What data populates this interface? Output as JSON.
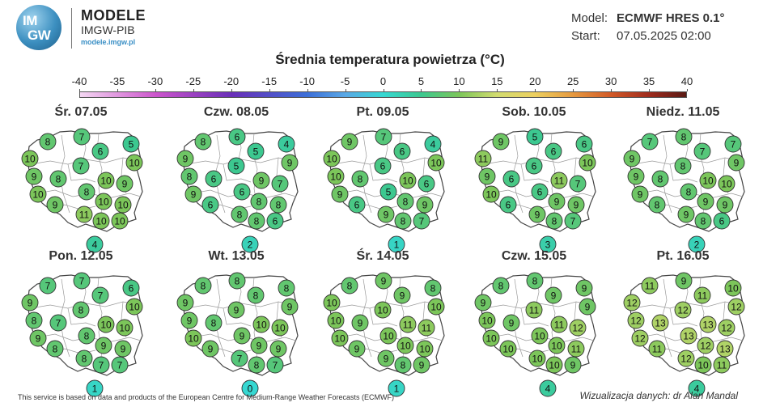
{
  "header": {
    "logo_text": "IMGW",
    "brand_title": "MODELE",
    "brand_subtitle": "IMGW-PIB",
    "brand_url": "modele.imgw.pl",
    "model_label": "Model:",
    "model_value": "ECMWF HRES 0.1°",
    "start_label": "Start:",
    "start_value": "07.05.2025 02:00",
    "title": "Średnia temperatura powietrza (°C)"
  },
  "colorbar": {
    "ticks": [
      "-40",
      "-35",
      "-30",
      "-25",
      "-20",
      "-15",
      "-10",
      "-5",
      "0",
      "5",
      "10",
      "15",
      "20",
      "25",
      "30",
      "35",
      "40"
    ],
    "min": -40,
    "max": 40
  },
  "map_data": {
    "days": [
      {
        "label": "Śr. 07.05",
        "values": [
          8,
          7,
          10,
          6,
          5,
          10,
          9,
          8,
          7,
          10,
          10,
          8,
          9,
          9,
          10,
          10,
          11,
          10,
          10,
          4
        ]
      },
      {
        "label": "Czw. 08.05",
        "values": [
          8,
          6,
          9,
          5,
          4,
          9,
          8,
          6,
          5,
          9,
          9,
          6,
          7,
          6,
          8,
          8,
          8,
          8,
          6,
          2
        ]
      },
      {
        "label": "Pt. 09.05",
        "values": [
          9,
          7,
          10,
          6,
          4,
          10,
          10,
          8,
          6,
          10,
          9,
          5,
          6,
          6,
          8,
          9,
          9,
          8,
          7,
          1
        ]
      },
      {
        "label": "Sob. 10.05",
        "values": [
          9,
          5,
          11,
          6,
          6,
          10,
          9,
          6,
          6,
          11,
          10,
          6,
          7,
          6,
          9,
          9,
          9,
          8,
          7,
          3
        ]
      },
      {
        "label": "Niedz. 11.05",
        "values": [
          7,
          8,
          9,
          7,
          7,
          9,
          9,
          8,
          8,
          10,
          9,
          8,
          10,
          8,
          9,
          9,
          9,
          8,
          6,
          2
        ]
      },
      {
        "label": "Pon. 12.05",
        "values": [
          7,
          7,
          9,
          7,
          6,
          10,
          8,
          7,
          8,
          10,
          9,
          8,
          10,
          8,
          9,
          9,
          8,
          7,
          7,
          1
        ]
      },
      {
        "label": "Wt. 13.05",
        "values": [
          8,
          8,
          9,
          8,
          8,
          9,
          9,
          8,
          9,
          10,
          10,
          9,
          10,
          9,
          9,
          9,
          7,
          8,
          7,
          0
        ]
      },
      {
        "label": "Śr. 14.05",
        "values": [
          8,
          9,
          10,
          9,
          8,
          10,
          10,
          9,
          10,
          11,
          10,
          10,
          11,
          9,
          10,
          10,
          9,
          8,
          9,
          1
        ]
      },
      {
        "label": "Czw. 15.05",
        "values": [
          8,
          8,
          9,
          9,
          9,
          9,
          10,
          9,
          11,
          11,
          10,
          10,
          12,
          10,
          10,
          11,
          10,
          10,
          9,
          4
        ]
      },
      {
        "label": "Pt. 16.05",
        "values": [
          11,
          9,
          12,
          11,
          10,
          12,
          12,
          13,
          12,
          13,
          12,
          13,
          12,
          11,
          12,
          13,
          12,
          10,
          11,
          4
        ]
      }
    ]
  },
  "footer": {
    "source": "This service is based on data and products of the European Centre for Medium-Range Weather Forecasts (ECMWF)",
    "credit": "Wizualizacja danych: dr Alan Mandal"
  }
}
